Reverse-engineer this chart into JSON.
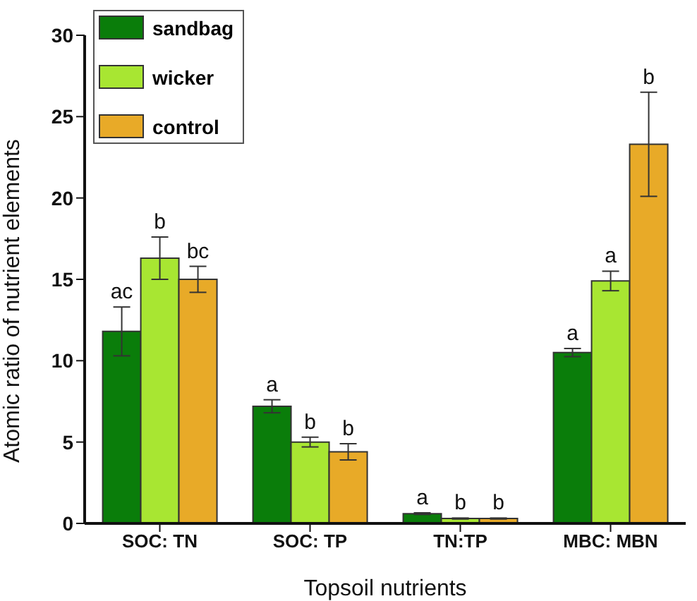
{
  "chart_data": {
    "type": "bar",
    "xlabel": "Topsoil nutrients",
    "ylabel": "Atomic ratio of nutrient elements",
    "categories": [
      "SOC: TN",
      "SOC: TP",
      "TN:TP",
      "MBC: MBN"
    ],
    "series": [
      {
        "name": "sandbag",
        "color": "#0a7d0a",
        "values": [
          11.8,
          7.2,
          0.6,
          10.5
        ],
        "errors": [
          1.5,
          0.4,
          0.05,
          0.25
        ],
        "value_labels": [
          "ac",
          "a",
          "a",
          "a"
        ]
      },
      {
        "name": "wicker",
        "color": "#a8e632",
        "values": [
          16.3,
          5.0,
          0.3,
          14.9
        ],
        "errors": [
          1.3,
          0.3,
          0.03,
          0.6
        ],
        "value_labels": [
          "b",
          "b",
          "b",
          "a"
        ]
      },
      {
        "name": "control",
        "color": "#e8aa28",
        "values": [
          15.0,
          4.4,
          0.3,
          23.3
        ],
        "errors": [
          0.8,
          0.5,
          0.03,
          3.2
        ],
        "value_labels": [
          "bc",
          "b",
          "b",
          "b"
        ]
      }
    ],
    "ylim": [
      0,
      30
    ],
    "yticks": [
      0,
      5,
      10,
      15,
      20,
      25,
      30
    ],
    "grid": false,
    "legend": "top left"
  }
}
